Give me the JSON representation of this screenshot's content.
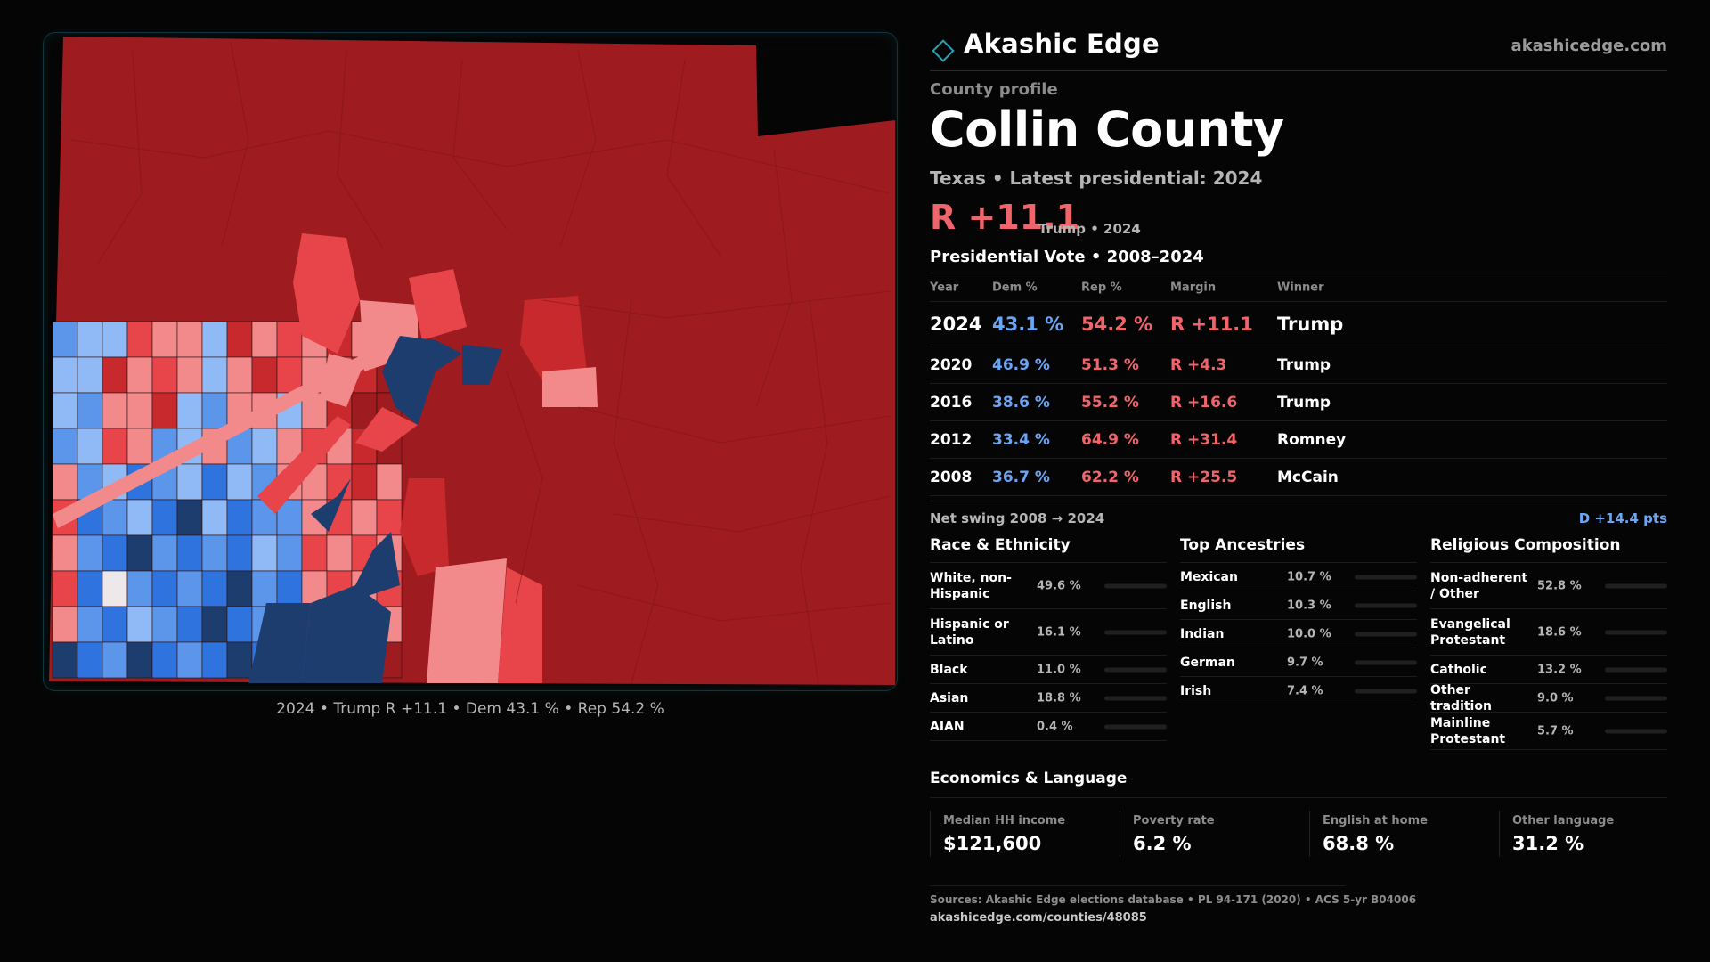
{
  "brand": {
    "name": "Akashic Edge",
    "url": "akashicedge.com"
  },
  "profile_label": "County profile",
  "county": {
    "name": "Collin County",
    "subtitle": "Texas • Latest presidential: 2024"
  },
  "headline": {
    "margin": "R +11.1",
    "note": "Trump • 2024"
  },
  "map": {
    "caption": "2024 • Trump R +11.1 • Dem 43.1 % • Rep 54.2 %",
    "colors": {
      "strong_r": "#9e1b1f",
      "lean_r": "#c8292d",
      "mid_r": "#e8454a",
      "light_r": "#f28a8c",
      "tilt": "#efe8ea",
      "light_d": "#8fbaf5",
      "mid_d": "#5b96ea",
      "lean_d": "#2f73de",
      "strong_d": "#1c3d6e"
    }
  },
  "vote": {
    "title": "Presidential Vote • 2008–2024",
    "headers": {
      "year": "Year",
      "dem": "Dem %",
      "rep": "Rep %",
      "margin": "Margin",
      "winner": "Winner"
    },
    "rows": [
      {
        "year": "2024",
        "dem": "43.1 %",
        "rep": "54.2 %",
        "margin": "R +11.1",
        "winner": "Trump"
      },
      {
        "year": "2020",
        "dem": "46.9 %",
        "rep": "51.3 %",
        "margin": "R +4.3",
        "winner": "Trump"
      },
      {
        "year": "2016",
        "dem": "38.6 %",
        "rep": "55.2 %",
        "margin": "R +16.6",
        "winner": "Trump"
      },
      {
        "year": "2012",
        "dem": "33.4 %",
        "rep": "64.9 %",
        "margin": "R +31.4",
        "winner": "Romney"
      },
      {
        "year": "2008",
        "dem": "36.7 %",
        "rep": "62.2 %",
        "margin": "R +25.5",
        "winner": "McCain"
      }
    ]
  },
  "swing": {
    "label": "Net swing 2008 → 2024",
    "value": "D +14.4 pts"
  },
  "race": {
    "title": "Race & Ethnicity",
    "items": [
      {
        "label": "White, non-Hispanic",
        "pct": "49.6 %",
        "value": 49.6,
        "color": "#8e97a6"
      },
      {
        "label": "Hispanic or Latino",
        "pct": "16.1 %",
        "value": 16.1,
        "color": "#e0a020"
      },
      {
        "label": "Black",
        "pct": "11.0 %",
        "value": 11.0,
        "color": "#9b7be0"
      },
      {
        "label": "Asian",
        "pct": "18.8 %",
        "value": 18.8,
        "color": "#2ec4a0"
      },
      {
        "label": "AIAN",
        "pct": "0.4 %",
        "value": 0.4,
        "color": "#e07030"
      }
    ]
  },
  "ancestry": {
    "title": "Top Ancestries",
    "items": [
      {
        "label": "Mexican",
        "pct": "10.7 %",
        "value": 10.7,
        "color": "#e0a020"
      },
      {
        "label": "English",
        "pct": "10.3 %",
        "value": 10.3,
        "color": "#9aa0a8"
      },
      {
        "label": "Indian",
        "pct": "10.0 %",
        "value": 10.0,
        "color": "#2ec4a0"
      },
      {
        "label": "German",
        "pct": "9.7 %",
        "value": 9.7,
        "color": "#9aa0a8"
      },
      {
        "label": "Irish",
        "pct": "7.4 %",
        "value": 7.4,
        "color": "#9aa0a8"
      }
    ]
  },
  "religion": {
    "title": "Religious Composition",
    "items": [
      {
        "label": "Non-adherent / Other",
        "pct": "52.8 %",
        "value": 52.8,
        "color": "#8e97a6"
      },
      {
        "label": "Evangelical Protestant",
        "pct": "18.6 %",
        "value": 18.6,
        "color": "#f0646b"
      },
      {
        "label": "Catholic",
        "pct": "13.2 %",
        "value": 13.2,
        "color": "#e0b020"
      },
      {
        "label": "Other tradition",
        "pct": "9.0 %",
        "value": 9.0,
        "color": "#9aa0a8"
      },
      {
        "label": "Mainline Protestant",
        "pct": "5.7 %",
        "value": 5.7,
        "color": "#6aa6f5"
      }
    ]
  },
  "economics": {
    "title": "Economics & Language",
    "cards": [
      {
        "label": "Median HH income",
        "value": "$121,600"
      },
      {
        "label": "Poverty rate",
        "value": "6.2 %"
      },
      {
        "label": "English at home",
        "value": "68.8 %"
      },
      {
        "label": "Other language",
        "value": "31.2 %"
      }
    ]
  },
  "sources": {
    "text": "Sources: Akashic Edge elections database • PL 94-171 (2020) • ACS 5-yr B04006",
    "link": "akashicedge.com/counties/48085"
  }
}
